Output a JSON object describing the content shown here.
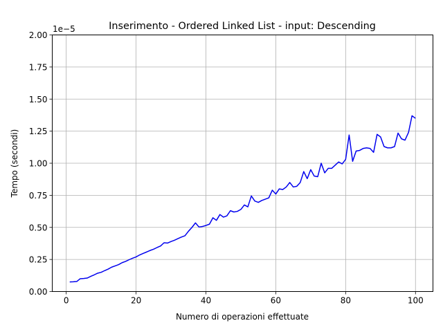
{
  "chart_data": {
    "type": "line",
    "title": "Inserimento - Ordered Linked List - input: Descending",
    "xlabel": "Numero di operazioni effettuate",
    "ylabel": "Tempo (secondi)",
    "offset_label": "1e−5",
    "xlim": [
      -4,
      105
    ],
    "ylim": [
      0,
      2.0
    ],
    "x_ticks": [
      0,
      20,
      40,
      60,
      80,
      100
    ],
    "x_tick_labels": [
      "0",
      "20",
      "40",
      "60",
      "80",
      "100"
    ],
    "y_ticks": [
      0,
      0.25,
      0.5,
      0.75,
      1.0,
      1.25,
      1.5,
      1.75,
      2.0
    ],
    "y_tick_labels": [
      "0.00",
      "0.25",
      "0.50",
      "0.75",
      "1.00",
      "1.25",
      "1.50",
      "1.75",
      "2.00"
    ],
    "grid": true,
    "line_color": "#0000ee",
    "series": [
      {
        "x": [
          1,
          2,
          3,
          4,
          5,
          6,
          7,
          8,
          9,
          10,
          11,
          12,
          13,
          14,
          15,
          16,
          17,
          18,
          19,
          20,
          21,
          22,
          23,
          24,
          25,
          26,
          27,
          28,
          29,
          30,
          31,
          32,
          33,
          34,
          35,
          36,
          37,
          38,
          39,
          40,
          41,
          42,
          43,
          44,
          45,
          46,
          47,
          48,
          49,
          50,
          51,
          52,
          53,
          54,
          55,
          56,
          57,
          58,
          59,
          60,
          61,
          62,
          63,
          64,
          65,
          66,
          67,
          68,
          69,
          70,
          71,
          72,
          73,
          74,
          75,
          76,
          77,
          78,
          79,
          80,
          81,
          82,
          83,
          84,
          85,
          86,
          87,
          88,
          89,
          90,
          91,
          92,
          93,
          94,
          95,
          96,
          97,
          98,
          99,
          100
        ],
        "values": [
          0.075,
          0.076,
          0.078,
          0.1,
          0.102,
          0.105,
          0.118,
          0.13,
          0.143,
          0.15,
          0.163,
          0.175,
          0.19,
          0.2,
          0.21,
          0.225,
          0.235,
          0.248,
          0.26,
          0.27,
          0.285,
          0.297,
          0.308,
          0.32,
          0.33,
          0.343,
          0.355,
          0.38,
          0.378,
          0.39,
          0.4,
          0.413,
          0.425,
          0.435,
          0.47,
          0.5,
          0.535,
          0.503,
          0.507,
          0.515,
          0.525,
          0.575,
          0.555,
          0.6,
          0.58,
          0.59,
          0.63,
          0.62,
          0.625,
          0.64,
          0.675,
          0.66,
          0.745,
          0.705,
          0.695,
          0.71,
          0.72,
          0.73,
          0.79,
          0.76,
          0.8,
          0.795,
          0.815,
          0.85,
          0.815,
          0.82,
          0.85,
          0.935,
          0.88,
          0.95,
          0.9,
          0.895,
          1.0,
          0.925,
          0.96,
          0.96,
          0.985,
          1.01,
          0.995,
          1.03,
          1.22,
          1.015,
          1.095,
          1.1,
          1.115,
          1.12,
          1.115,
          1.085,
          1.225,
          1.205,
          1.13,
          1.12,
          1.12,
          1.13,
          1.235,
          1.19,
          1.18,
          1.24,
          1.37,
          1.35
        ]
      }
    ]
  }
}
